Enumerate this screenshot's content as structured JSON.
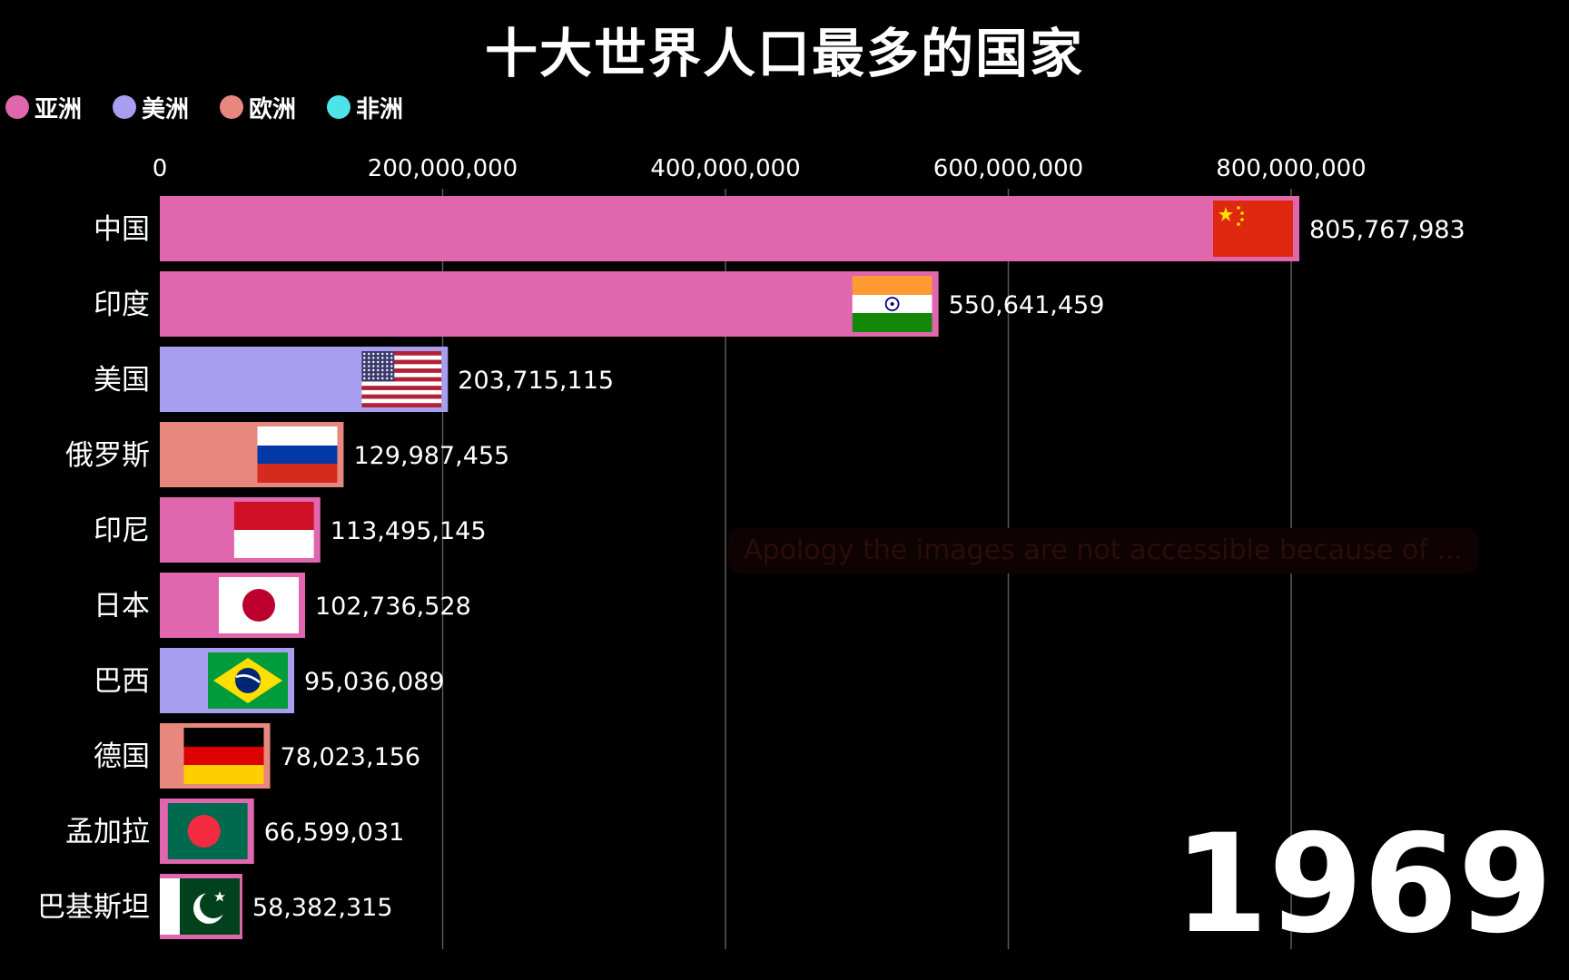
{
  "title": "十大世界人口最多的国家",
  "legend": [
    {
      "label": "亚洲",
      "color": "#e066ad"
    },
    {
      "label": "美洲",
      "color": "#a79ef0"
    },
    {
      "label": "欧洲",
      "color": "#e8877e"
    },
    {
      "label": "非洲",
      "color": "#4ee3e8"
    }
  ],
  "year": "1969",
  "warning_text": "Apology the images are not accessible because of ...",
  "chart_data": {
    "type": "bar",
    "orientation": "horizontal",
    "title": "十大世界人口最多的国家",
    "xlim": [
      0,
      1000000000
    ],
    "x_ticks": [
      0,
      200000000,
      400000000,
      600000000,
      800000000
    ],
    "x_tick_labels": [
      "0",
      "200,000,000",
      "400,000,000",
      "600,000,000",
      "800,000,000"
    ],
    "grid": true,
    "legend_position": "top-left",
    "categories": [
      "中国",
      "印度",
      "美国",
      "俄罗斯",
      "印尼",
      "日本",
      "巴西",
      "德国",
      "孟加拉",
      "巴基斯坦"
    ],
    "values": [
      805767983,
      550641459,
      203715115,
      129987455,
      113495145,
      102736528,
      95036089,
      78023156,
      66599031,
      58382315
    ],
    "value_labels": [
      "805,767,983",
      "550,641,459",
      "203,715,115",
      "129,987,455",
      "113,495,145",
      "102,736,528",
      "95,036,089",
      "78,023,156",
      "66,599,031",
      "58,382,315"
    ],
    "regions": [
      "亚洲",
      "亚洲",
      "美洲",
      "欧洲",
      "亚洲",
      "亚洲",
      "美洲",
      "欧洲",
      "亚洲",
      "亚洲"
    ],
    "flags": [
      "china-flag",
      "india-flag",
      "usa-flag",
      "russia-flag",
      "indonesia-flag",
      "japan-flag",
      "brazil-flag",
      "germany-flag",
      "bangladesh-flag",
      "pakistan-flag"
    ]
  }
}
